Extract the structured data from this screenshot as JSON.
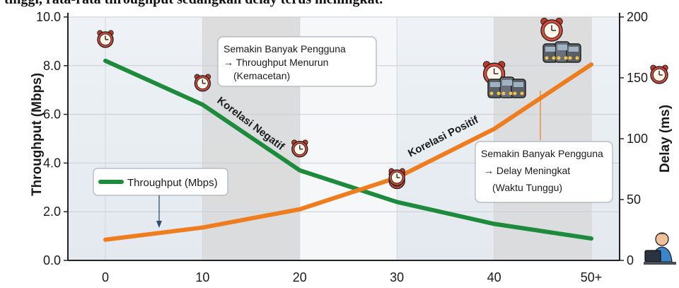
{
  "top_text": "tinggi, rata-rata throughput sedangkan delay terus meningkat.",
  "chart_data": {
    "type": "line",
    "x": [
      0,
      10,
      20,
      30,
      40,
      50
    ],
    "x_tick_labels": [
      "0",
      "10",
      "20",
      "30",
      "40",
      "50+"
    ],
    "y_left": {
      "label": "Throughput (Mbps)",
      "ylim": [
        0,
        10
      ],
      "ticks": [
        "0.0",
        "2.0",
        "4.0",
        "6.0",
        "8.0",
        "10.0"
      ]
    },
    "y_right": {
      "label": "Delay (ms)",
      "ylim": [
        0,
        200
      ],
      "ticks": [
        "0",
        "50",
        "100",
        "150",
        "200"
      ]
    },
    "grid": true,
    "series": [
      {
        "name": "Throughput (Mbps)",
        "axis": "left",
        "color": "#1e8a3c",
        "values": [
          8.2,
          6.4,
          3.7,
          2.4,
          1.5,
          0.9
        ]
      },
      {
        "axis": "right",
        "color": "#ee7d1f",
        "values": [
          17,
          27,
          42,
          68,
          108,
          161
        ]
      }
    ],
    "legend": {
      "position": "center-left"
    },
    "annotations": {
      "throughput_note": [
        "Semakin Banyak Pengguna",
        "→ Throughput Menurun",
        "(Kemacetan)"
      ],
      "delay_note": [
        "Semakin Banyak Pengguna",
        "→ Delay Meningkat",
        "(Waktu Tunggu)"
      ],
      "negative_label": "Korelasi Negatif",
      "positive_label": "Korelasi Positif"
    },
    "icons": [
      "alarm-clock-icon",
      "traffic-jam-icon",
      "funnel-icon",
      "waiting-icon",
      "user-at-computer-icon"
    ]
  }
}
